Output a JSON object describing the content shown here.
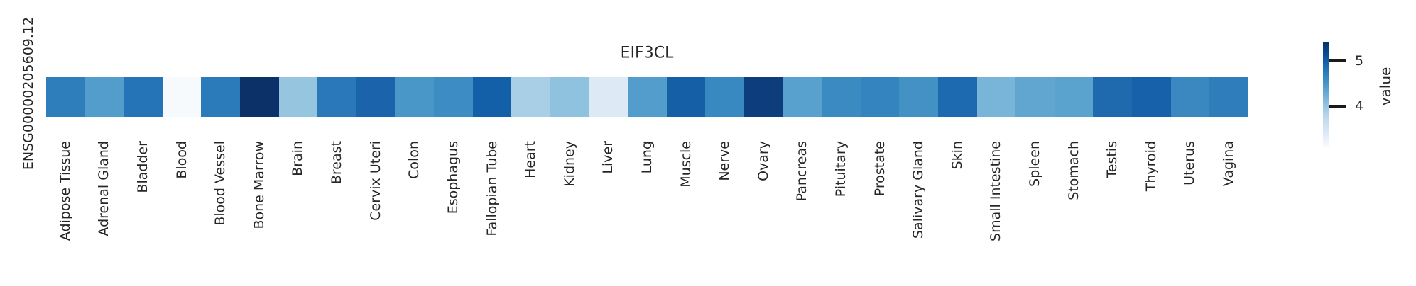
{
  "figure": {
    "title": "EIF3CL",
    "row_label": "ENSG00000205609.12"
  },
  "colorbar": {
    "label": "value",
    "tick_labels": [
      "5",
      "4"
    ]
  },
  "chart_data": {
    "type": "heatmap",
    "title": "EIF3CL",
    "row_labels": [
      "ENSG00000205609.12"
    ],
    "categories": [
      "Adipose Tissue",
      "Adrenal Gland",
      "Bladder",
      "Blood",
      "Blood Vessel",
      "Bone Marrow",
      "Brain",
      "Breast",
      "Cervix Uteri",
      "Colon",
      "Esophagus",
      "Fallopian Tube",
      "Heart",
      "Kidney",
      "Liver",
      "Lung",
      "Muscle",
      "Nerve",
      "Ovary",
      "Pancreas",
      "Pituitary",
      "Prostate",
      "Salivary Gland",
      "Skin",
      "Small Intestine",
      "Spleen",
      "Stomach",
      "Testis",
      "Thyroid",
      "Uterus",
      "Vagina"
    ],
    "series": [
      {
        "name": "ENSG00000205609.12",
        "values": [
          4.75,
          4.5,
          4.85,
          3.2,
          4.8,
          5.4,
          4.1,
          4.8,
          4.95,
          4.55,
          4.65,
          5.0,
          3.95,
          4.1,
          3.45,
          4.5,
          5.0,
          4.7,
          5.3,
          4.5,
          4.65,
          4.7,
          4.6,
          4.9,
          4.25,
          4.45,
          4.45,
          4.9,
          5.0,
          4.65,
          4.75
        ]
      }
    ],
    "cell_colors": [
      "#2e7ebc",
      "#529dcc",
      "#2474b7",
      "#f6fafd",
      "#2b7ab9",
      "#0b3168",
      "#96c5df",
      "#2a78b9",
      "#1b63aa",
      "#4997c9",
      "#3d8dc4",
      "#1460a8",
      "#a8cfe5",
      "#8fc2de",
      "#ddeaf6",
      "#539dcc",
      "#155fa7",
      "#3888c1",
      "#0d3d7c",
      "#58a1ce",
      "#3b8ac2",
      "#3484bf",
      "#4491c6",
      "#1d6ab0",
      "#79b5d9",
      "#60a6d1",
      "#5ba3cf",
      "#1f69ae",
      "#1661a9",
      "#3b87c0",
      "#2f7dbb"
    ],
    "colormap": "Blues",
    "colormap_stops": [
      "#08306b",
      "#08519c",
      "#2171b5",
      "#4292c6",
      "#6baed6",
      "#9ecae1",
      "#c6dbef",
      "#deebf7",
      "#f7fbff"
    ],
    "colorbar": {
      "label": "value",
      "ticks": [
        5,
        4
      ],
      "orientation": "vertical",
      "position": "right"
    },
    "value_range_estimate": [
      3.2,
      5.4
    ],
    "grid": false,
    "legend_position": "right"
  }
}
